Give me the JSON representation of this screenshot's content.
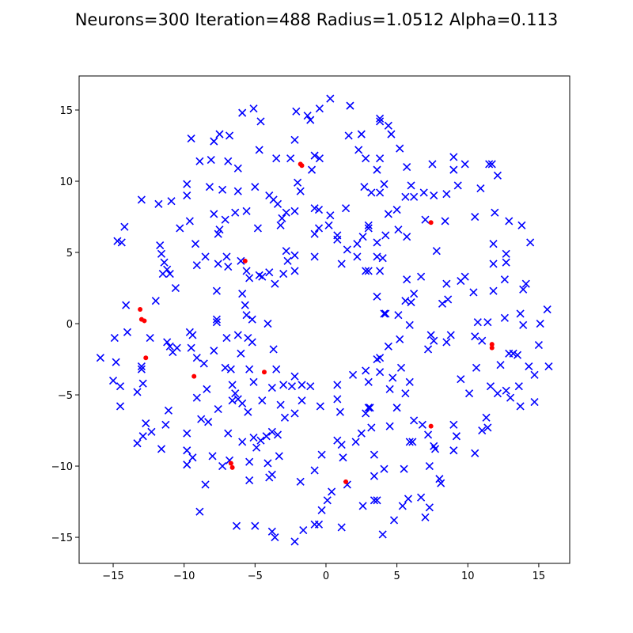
{
  "chart_data": {
    "type": "scatter",
    "title": "Neurons=300 Iteration=488 Radius=1.0512 Alpha=0.113",
    "xlim": [
      -17.4,
      17.18
    ],
    "ylim": [
      -16.83,
      17.39
    ],
    "xticks": [
      {
        "value": -15,
        "label": "−15"
      },
      {
        "value": -10,
        "label": "−10"
      },
      {
        "value": -5,
        "label": "−5"
      },
      0,
      5,
      10,
      15
    ],
    "yticks": [
      {
        "value": -15,
        "label": "−15"
      },
      {
        "value": -10,
        "label": "−10"
      },
      {
        "value": -5,
        "label": "−5"
      },
      0,
      5,
      10,
      15
    ],
    "series": [
      {
        "color": "#0000ff",
        "marker": "x",
        "x": [
          0.3,
          1.7,
          -0.45,
          -1.3,
          -1.1,
          -2.1,
          -5.1,
          -5.9,
          -4.6,
          3.8,
          3.8,
          4.4,
          4.6,
          1.6,
          2.5,
          5.2,
          2.3,
          -2.2,
          -4.7,
          -7.5,
          -6.8,
          -7.9,
          -9.5,
          -8.9,
          -8.1,
          -6.9,
          -6.2,
          -3.5,
          -2.5,
          -0.8,
          -0.45,
          -1.0,
          2.8,
          3.8,
          3.6,
          5.7,
          7.5,
          9.0,
          9.0,
          9.8,
          11.5,
          11.7,
          12.1,
          9.3,
          10.9,
          6.0,
          5.6,
          6.2,
          6.9,
          7.6,
          8.5,
          5.0,
          4.4,
          -2.0,
          -1.8,
          -5.0,
          -4.0,
          -3.7,
          -3.4,
          -6.2,
          -7.3,
          -8.2,
          -9.8,
          -9.8,
          -10.9,
          -11.8,
          -13.0,
          -10.3,
          -9.6,
          -7.9,
          -7.1,
          -6.4,
          -5.6,
          -7.5,
          -7.6,
          -4.8,
          -3.2,
          -3.1,
          -2.8,
          -2.2,
          -0.8,
          -0.5,
          0.3,
          1.4,
          2.7,
          3.2,
          3.8,
          4.1,
          0.2,
          -0.5,
          -0.8,
          0.8,
          3.0,
          3.0,
          2.6,
          2.2,
          3.6,
          4.2,
          5.1,
          5.7,
          7.0,
          8.4,
          10.5,
          11.9,
          12.9,
          13.8,
          14.4,
          12.7,
          12.7,
          11.8,
          11.8,
          7.8,
          6.7,
          5.7,
          8.5,
          9.8,
          9.5,
          10.4,
          12.6,
          14.1,
          13.9,
          11.8,
          12.6,
          13.7,
          13.9,
          15.1,
          15.6,
          11.4,
          10.7,
          8.2,
          8.6,
          6.2,
          6.0,
          5.6,
          4.2,
          4.1,
          5.1,
          3.6,
          2.8,
          3.8,
          3.6,
          4.0,
          2.2,
          1.1,
          1.5,
          0.8,
          3.0,
          -2.2,
          -2.2,
          -3.0,
          -4.0,
          -3.6,
          -2.7,
          -2.8,
          -0.8,
          -4.5,
          -4.7,
          -5.6,
          -5.4,
          -5.9,
          -5.7,
          -5.6,
          -5.2,
          -6.0,
          -7.0,
          -7.6,
          -6.9,
          -8.5,
          -9.1,
          -9.2,
          -11.2,
          -11.0,
          -11.5,
          -11.4,
          -11.6,
          -11.7,
          -10.6,
          -12.0,
          -14.1,
          -14.7,
          -14.4,
          -14.2,
          -7.7,
          -7.7,
          -7.7,
          -4.1,
          -14.9,
          -14.0,
          -15.9,
          -14.8,
          -13.0,
          -13.0,
          -12.4,
          -11.2,
          -11.0,
          -10.8,
          -10.5,
          -9.6,
          -9.4,
          -9.5,
          -9.1,
          -8.6,
          -7.9,
          -7.0,
          -6.2,
          -5.5,
          -5.2,
          -6.0,
          -7.1,
          -6.7,
          -5.4,
          -3.7,
          -3.5,
          -2.2,
          -2.4,
          -1.7,
          -1.1,
          -3.8,
          -3.0,
          -5.1,
          -6.6,
          -8.4,
          -6.4,
          -9.1,
          -12.9,
          -13.3,
          -14.5,
          -15.0,
          -14.5,
          -5.9,
          -5.5,
          -4.5,
          -3.2,
          -2.9,
          -2.2,
          -1.7,
          -0.4,
          0.8,
          1.0,
          0.8,
          1.9,
          2.8,
          3.0,
          3.8,
          4.7,
          4.5,
          5.6,
          5.9,
          5.3,
          3.8,
          3.6,
          4.4,
          5.2,
          5.9,
          7.4,
          7.2,
          7.6,
          8.5,
          8.8,
          10.5,
          11.0,
          10.6,
          9.5,
          10.1,
          11.6,
          12.1,
          12.7,
          13.6,
          13.0,
          13.7,
          14.7,
          15.0,
          15.7,
          14.3,
          14.7,
          12.9,
          13.2,
          13.5,
          12.3,
          11.3,
          11.0,
          11.4,
          9.0,
          9.2,
          9.0,
          7.6,
          7.7,
          10.5,
          7.2,
          6.2,
          6.8,
          5.9,
          6.1,
          4.5,
          5.0,
          3.0,
          3.1,
          2.8,
          2.5,
          3.2,
          2.1,
          1.1,
          0.8,
          1.2,
          3.4,
          4.1,
          5.5,
          7.3,
          8.0,
          8.1,
          5.8,
          5.4,
          6.7,
          7.3,
          7.0,
          4.8,
          4.0,
          3.4,
          3.6,
          2.6,
          3.4,
          0.4,
          1.5,
          -0.8,
          -0.3,
          -1.8,
          -0.3,
          0.1,
          -0.5,
          -0.8,
          1.1,
          -1.6,
          -2.2,
          -3.6,
          -3.8,
          -5.0,
          -6.3,
          -4.0,
          -3.8,
          -3.3,
          -4.1,
          -4.9,
          -4.6,
          -3.8,
          -3.4,
          -4.2,
          -5.1,
          -5.9,
          -5.4,
          -5.4,
          -6.9,
          -6.8,
          -7.3,
          -8.0,
          -8.5,
          -8.9,
          -8.3,
          -8.8,
          -9.8,
          -9.8,
          -9.4,
          -9.8,
          -11.3,
          -11.1,
          -12.3,
          -12.7,
          -12.9,
          -13.3,
          -11.6,
          -7.6,
          -6.6,
          -6.2
        ],
        "values": [
          15.8,
          15.3,
          15.1,
          14.6,
          14.3,
          14.9,
          15.1,
          14.8,
          14.2,
          14.4,
          14.2,
          13.9,
          13.3,
          13.2,
          13.3,
          12.3,
          12.2,
          12.9,
          12.2,
          13.3,
          13.2,
          12.8,
          13.0,
          11.4,
          11.5,
          11.4,
          10.9,
          11.6,
          11.6,
          11.8,
          11.6,
          10.8,
          11.6,
          11.6,
          10.8,
          11.0,
          11.2,
          11.7,
          10.8,
          11.2,
          11.2,
          11.2,
          10.4,
          9.7,
          9.5,
          9.7,
          8.9,
          8.9,
          9.2,
          9.0,
          9.1,
          8.0,
          7.7,
          9.9,
          9.3,
          9.6,
          9.0,
          8.7,
          8.4,
          9.3,
          9.4,
          9.6,
          9.8,
          9.0,
          8.6,
          8.4,
          8.7,
          6.7,
          7.2,
          7.7,
          7.3,
          7.8,
          7.9,
          6.6,
          6.3,
          6.7,
          6.9,
          7.4,
          7.8,
          7.9,
          8.1,
          8.0,
          7.6,
          8.1,
          9.6,
          9.2,
          9.2,
          9.8,
          6.9,
          6.7,
          6.3,
          6.2,
          6.7,
          6.9,
          6.1,
          5.6,
          5.7,
          6.2,
          6.6,
          6.1,
          7.3,
          7.2,
          7.5,
          7.8,
          7.2,
          6.9,
          5.7,
          4.9,
          4.3,
          5.6,
          4.2,
          5.1,
          3.3,
          3.1,
          2.8,
          3.3,
          3.0,
          2.2,
          3.1,
          2.8,
          2.4,
          2.3,
          0.4,
          0.7,
          -0.1,
          0.0,
          1.0,
          0.1,
          0.1,
          1.4,
          1.7,
          2.1,
          1.5,
          1.6,
          0.7,
          0.7,
          0.6,
          1.9,
          3.7,
          3.7,
          4.7,
          4.6,
          4.7,
          4.2,
          5.2,
          5.9,
          3.7,
          4.8,
          3.7,
          3.5,
          3.6,
          2.8,
          4.4,
          5.1,
          4.7,
          3.3,
          3.4,
          3.7,
          3.2,
          2.1,
          1.3,
          0.6,
          0.3,
          4.4,
          4.7,
          4.2,
          4.0,
          4.7,
          4.1,
          5.6,
          3.8,
          3.5,
          3.5,
          4.3,
          4.9,
          5.5,
          2.5,
          1.6,
          1.3,
          5.8,
          5.7,
          6.8,
          2.3,
          0.3,
          0.1,
          0.0,
          -1.0,
          -0.6,
          -2.4,
          -2.7,
          -3.0,
          -3.2,
          -1.0,
          -1.3,
          -1.6,
          -2.0,
          -1.7,
          -0.6,
          -0.8,
          -1.7,
          -2.4,
          -2.8,
          -1.9,
          -1.0,
          -0.8,
          -1.0,
          -1.3,
          -2.1,
          -3.1,
          -3.2,
          -3.2,
          -1.8,
          -3.2,
          -3.7,
          -4.4,
          -4.3,
          -4.4,
          -4.5,
          -4.3,
          -4.1,
          -4.3,
          -4.6,
          -4.9,
          -5.2,
          -4.2,
          -4.8,
          -4.4,
          -4.0,
          -5.8,
          -5.6,
          -6.2,
          -5.4,
          -5.7,
          -6.6,
          -6.3,
          -5.4,
          -5.8,
          -5.3,
          -6.2,
          -4.3,
          -3.6,
          -3.3,
          -4.1,
          -3.4,
          -3.8,
          -4.6,
          -4.9,
          -4.1,
          -3.1,
          -2.4,
          -2.5,
          -1.6,
          -1.1,
          -0.1,
          -0.8,
          -1.8,
          -1.2,
          -1.3,
          -0.8,
          -0.9,
          -1.2,
          -3.1,
          -3.9,
          -4.9,
          -4.4,
          -4.9,
          -4.7,
          -4.4,
          -5.2,
          -5.8,
          -5.5,
          -1.5,
          -3.0,
          -3.0,
          -3.6,
          -2.1,
          -2.1,
          -2.2,
          -2.9,
          -6.6,
          -7.5,
          -7.3,
          -7.1,
          -7.9,
          -8.9,
          -8.6,
          -8.8,
          -9.1,
          -7.8,
          -6.8,
          -7.1,
          -8.3,
          -8.3,
          -7.2,
          -5.9,
          -5.9,
          -5.9,
          -6.3,
          -7.7,
          -7.3,
          -8.3,
          -8.5,
          -8.2,
          -9.4,
          -9.2,
          -10.2,
          -10.2,
          -10.0,
          -10.9,
          -11.2,
          -12.3,
          -12.8,
          -12.2,
          -12.9,
          -13.6,
          -13.8,
          -14.8,
          -12.4,
          -12.4,
          -12.8,
          -10.7,
          -11.8,
          -11.3,
          -10.3,
          -9.2,
          -11.1,
          -13.1,
          -12.4,
          -14.1,
          -14.1,
          -14.3,
          -14.5,
          -15.3,
          -15.0,
          -14.6,
          -14.2,
          -14.2,
          -10.8,
          -10.6,
          -9.3,
          -9.8,
          -8.7,
          -8.2,
          -7.6,
          -7.8,
          -7.9,
          -8.0,
          -8.3,
          -9.7,
          -11.0,
          -7.7,
          -9.6,
          -10.0,
          -9.3,
          -11.3,
          -13.2,
          -6.9,
          -6.7,
          -7.7,
          -8.9,
          -9.4,
          -9.9,
          -7.1,
          -6.1,
          -7.6,
          -7.0,
          -7.9,
          -8.4,
          -8.8,
          -6.0,
          -5.4,
          -5.3
        ]
      },
      {
        "color": "#ff0000",
        "marker": "o",
        "x": [
          -1.8,
          -1.7,
          -5.7,
          7.4,
          -13.1,
          -13.0,
          -12.8,
          -12.7,
          -9.3,
          -4.35,
          11.7,
          11.7,
          7.4,
          -6.7,
          -6.6,
          1.4
        ],
        "values": [
          11.2,
          11.1,
          4.4,
          7.1,
          1.0,
          0.3,
          0.2,
          -2.4,
          -3.7,
          -3.4,
          -1.45,
          -1.7,
          -7.2,
          -9.8,
          -10.1,
          -11.1
        ]
      }
    ]
  }
}
